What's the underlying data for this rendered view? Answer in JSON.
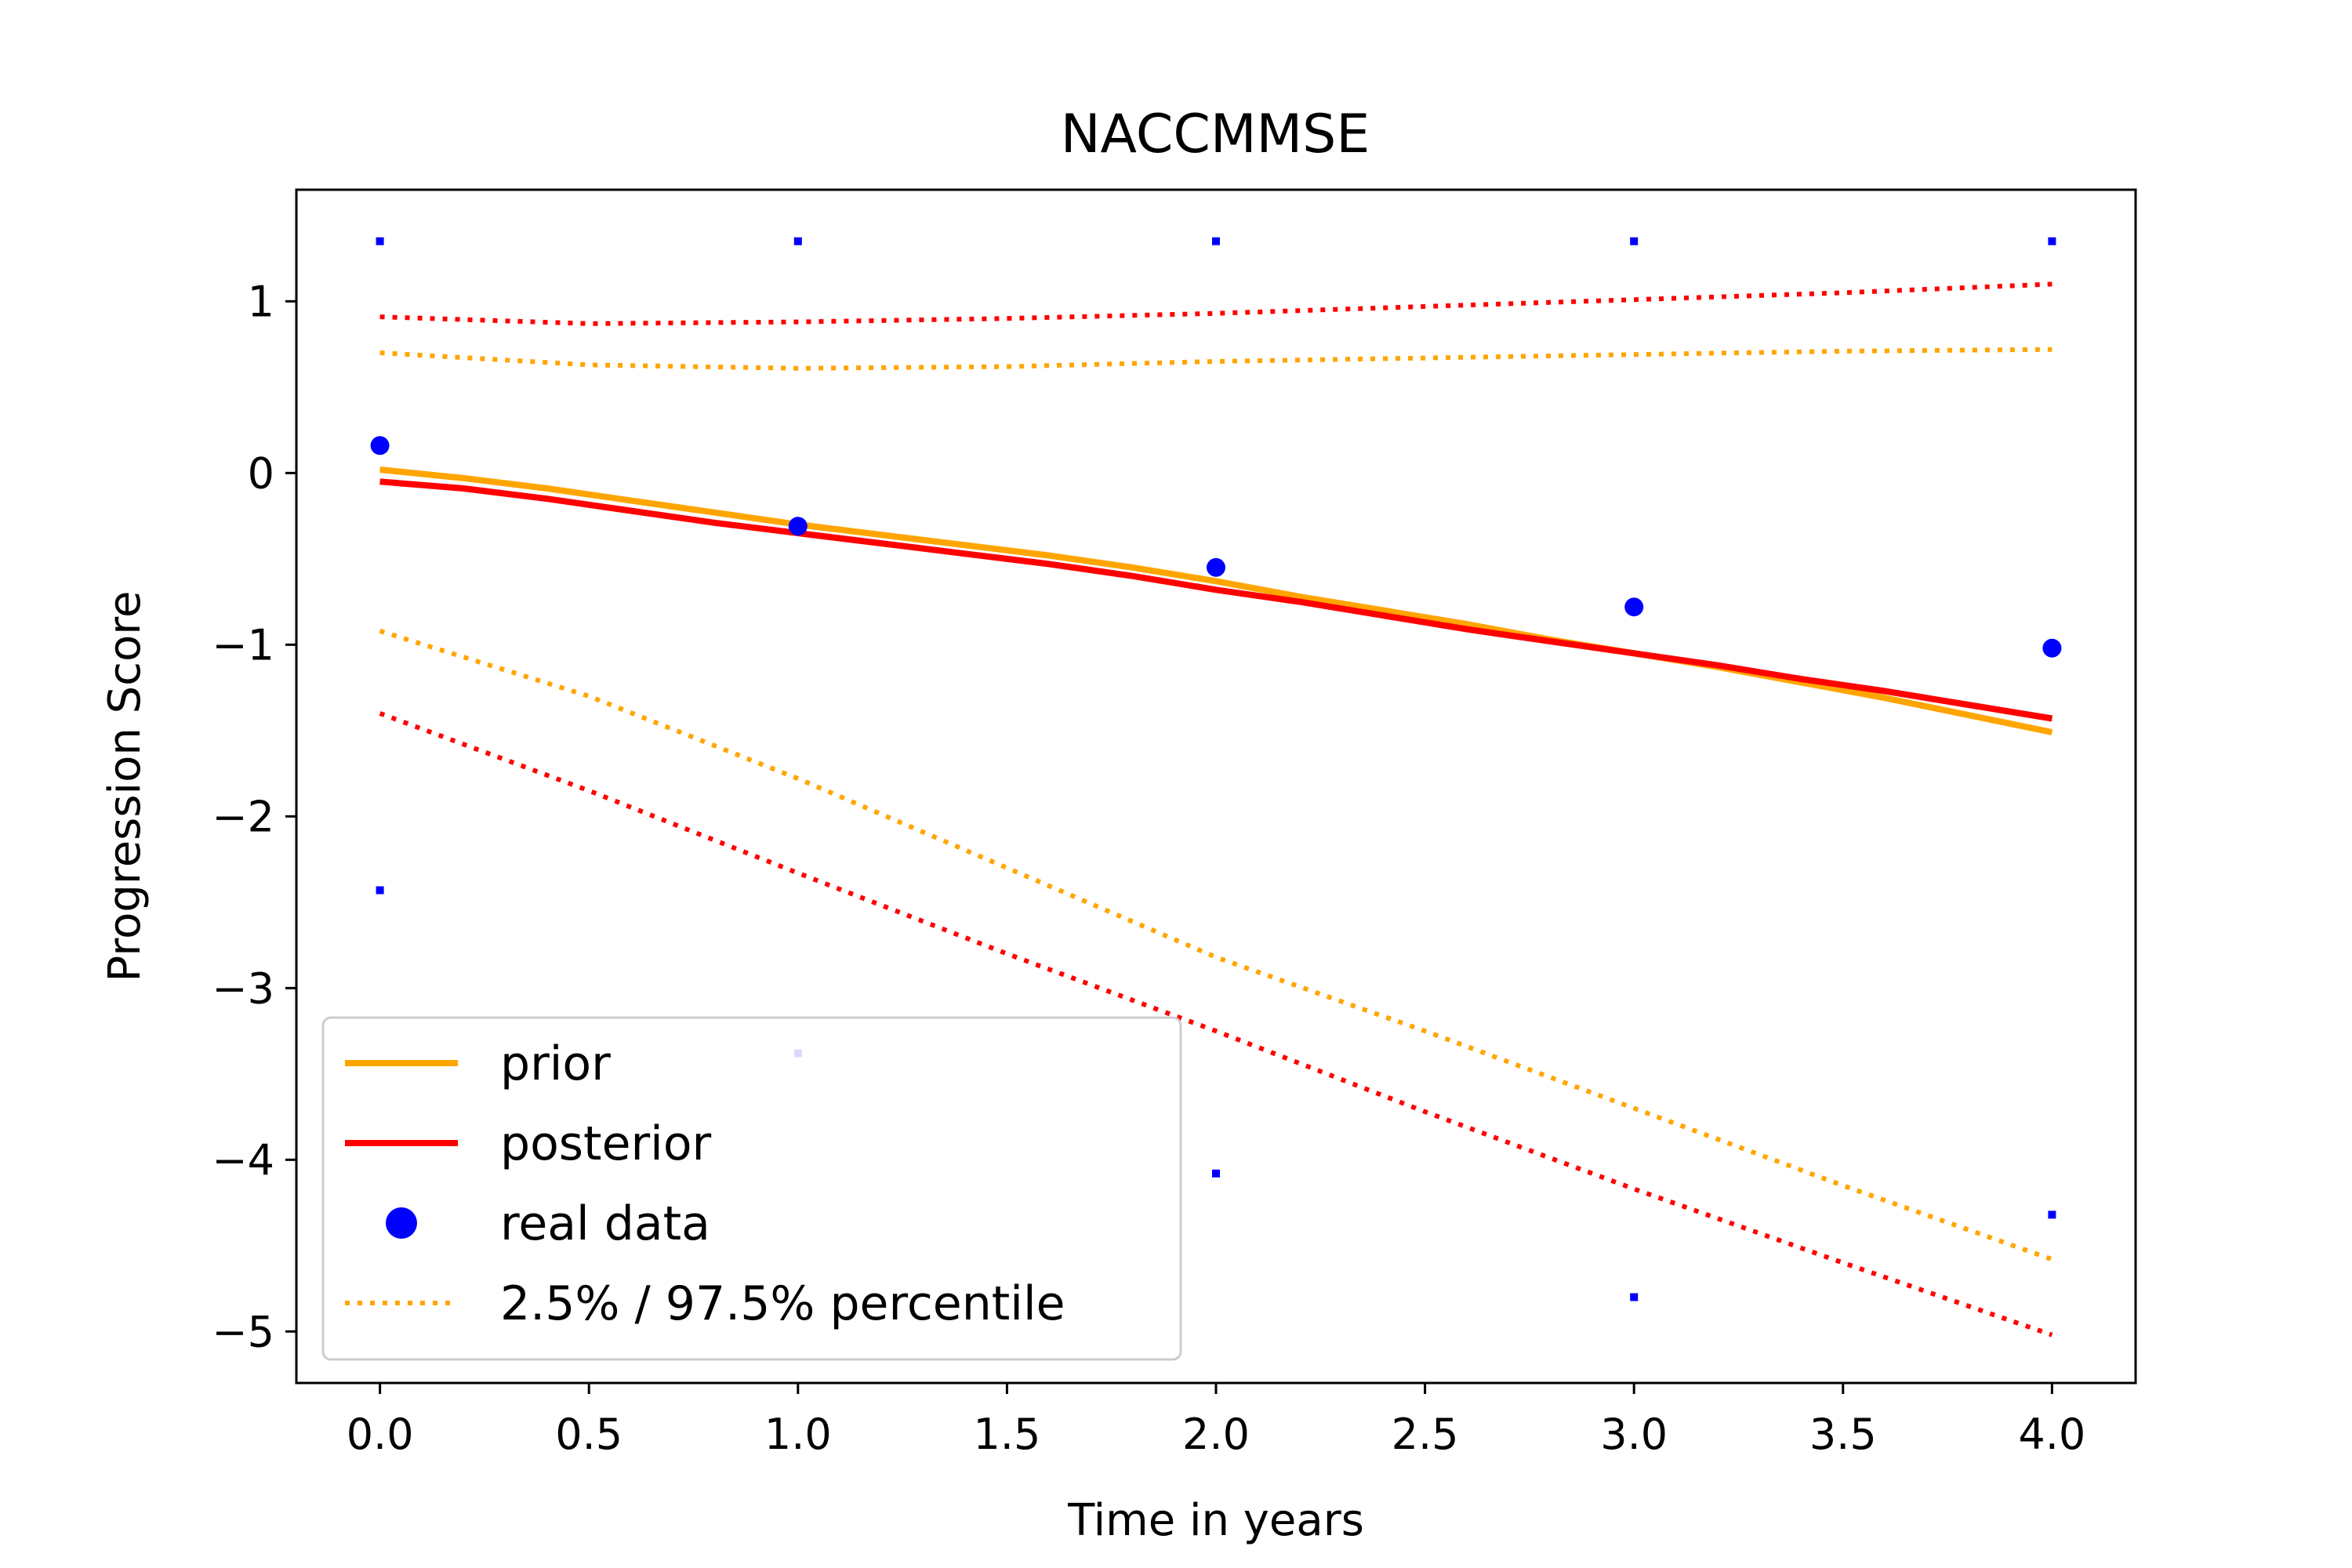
{
  "chart_data": {
    "type": "line",
    "title": "NACCMMSE",
    "xlabel": "Time in years",
    "ylabel": "Progression Score",
    "xlim": [
      -0.2,
      4.2
    ],
    "ylim": [
      -5.3,
      1.65
    ],
    "xticks": [
      0.0,
      0.5,
      1.0,
      1.5,
      2.0,
      2.5,
      3.0,
      3.5,
      4.0
    ],
    "xtick_labels": [
      "0.0",
      "0.5",
      "1.0",
      "1.5",
      "2.0",
      "2.5",
      "3.0",
      "3.5",
      "4.0"
    ],
    "yticks": [
      1,
      0,
      -1,
      -2,
      -3,
      -4,
      -5
    ],
    "ytick_labels": [
      "1",
      "0",
      "−1",
      "−2",
      "−3",
      "−4",
      "−5"
    ],
    "grid": false,
    "legend_position": "lower-left",
    "colors": {
      "prior": "#FFA500",
      "posterior": "#FF0000",
      "data": "#0000FF"
    },
    "series": [
      {
        "name": "prior",
        "style": "solid",
        "color": "#FFA500",
        "x": [
          0,
          0.2,
          0.4,
          0.6,
          0.8,
          1.0,
          1.2,
          1.4,
          1.6,
          1.8,
          2.0,
          2.2,
          2.4,
          2.6,
          2.8,
          3.0,
          3.2,
          3.4,
          3.6,
          3.8,
          4.0
        ],
        "y": [
          0.02,
          -0.03,
          -0.09,
          -0.16,
          -0.23,
          -0.3,
          -0.36,
          -0.42,
          -0.48,
          -0.55,
          -0.63,
          -0.72,
          -0.8,
          -0.88,
          -0.97,
          -1.05,
          -1.13,
          -1.22,
          -1.31,
          -1.41,
          -1.51
        ]
      },
      {
        "name": "posterior",
        "style": "solid",
        "color": "#FF0000",
        "x": [
          0,
          0.2,
          0.4,
          0.6,
          0.8,
          1.0,
          1.2,
          1.4,
          1.6,
          1.8,
          2.0,
          2.2,
          2.4,
          2.6,
          2.8,
          3.0,
          3.2,
          3.4,
          3.6,
          3.8,
          4.0
        ],
        "y": [
          -0.05,
          -0.09,
          -0.15,
          -0.22,
          -0.29,
          -0.35,
          -0.41,
          -0.47,
          -0.53,
          -0.6,
          -0.68,
          -0.75,
          -0.83,
          -0.91,
          -0.98,
          -1.05,
          -1.12,
          -1.2,
          -1.27,
          -1.35,
          -1.43
        ]
      },
      {
        "name": "2.5% / 97.5% percentile",
        "style": "dotted",
        "color": "#FFA500",
        "x": [
          0,
          0.5,
          1.0,
          1.5,
          2.0,
          2.5,
          3.0,
          3.5,
          4.0
        ],
        "y": [
          0.7,
          0.63,
          0.61,
          0.62,
          0.65,
          0.67,
          0.69,
          0.71,
          0.72
        ]
      },
      {
        "name": "",
        "style": "dotted",
        "color": "#FFA500",
        "x": [
          0,
          0.5,
          1.0,
          1.5,
          2.0,
          2.5,
          3.0,
          3.5,
          4.0
        ],
        "y": [
          -0.92,
          -1.3,
          -1.78,
          -2.3,
          -2.82,
          -3.25,
          -3.7,
          -4.15,
          -4.58
        ]
      },
      {
        "name": "",
        "style": "dotted",
        "color": "#FF0000",
        "x": [
          0,
          0.5,
          1.0,
          1.5,
          2.0,
          2.5,
          3.0,
          3.5,
          4.0
        ],
        "y": [
          0.91,
          0.87,
          0.88,
          0.9,
          0.93,
          0.97,
          1.01,
          1.05,
          1.1
        ]
      },
      {
        "name": "",
        "style": "dotted",
        "color": "#FF0000",
        "x": [
          0,
          0.5,
          1.0,
          1.5,
          2.0,
          2.5,
          3.0,
          3.5,
          4.0
        ],
        "y": [
          -1.4,
          -1.85,
          -2.33,
          -2.8,
          -3.25,
          -3.72,
          -4.17,
          -4.6,
          -5.02
        ]
      }
    ],
    "real_data": {
      "name": "real data",
      "color": "#0000FF",
      "x": [
        0,
        1,
        2,
        3,
        4
      ],
      "y": [
        0.16,
        -0.31,
        -0.55,
        -0.78,
        -1.02
      ]
    },
    "small_markers": {
      "color": "#0000FF",
      "x": [
        0,
        1,
        2,
        3,
        4,
        0,
        1,
        2,
        3,
        4
      ],
      "y": [
        1.35,
        1.35,
        1.35,
        1.35,
        1.35,
        -2.43,
        -3.38,
        -4.08,
        -4.8,
        -4.32
      ]
    },
    "legend": [
      {
        "label": "prior",
        "color": "#FFA500",
        "style": "solid"
      },
      {
        "label": "posterior",
        "color": "#FF0000",
        "style": "solid"
      },
      {
        "label": "real data",
        "color": "#0000FF",
        "style": "marker"
      },
      {
        "label": "2.5% / 97.5% percentile",
        "color": "#FFA500",
        "style": "dotted"
      }
    ]
  }
}
